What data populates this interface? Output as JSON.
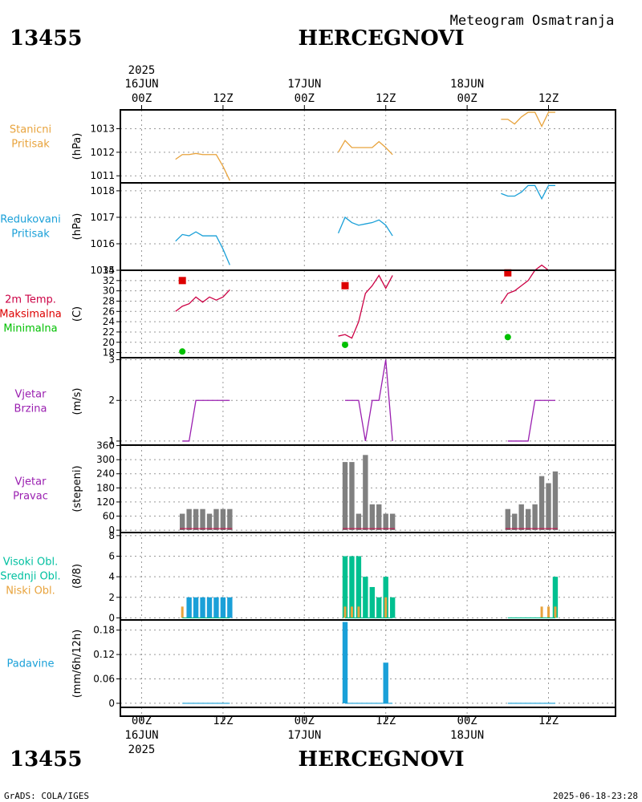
{
  "header": {
    "station_id": "13455",
    "station_name": "HERCEGNOVI",
    "subtitle": "Meteogram Osmatranja"
  },
  "footer": {
    "station_id": "13455",
    "station_name": "HERCEGNOVI",
    "credit": "GrADS: COLA/IGES",
    "timestamp": "2025-06-18-23:28"
  },
  "time_axis": {
    "top": [
      {
        "l1": "2025",
        "l2": "16JUN",
        "l3": "00Z",
        "h": 0
      },
      {
        "l1": "",
        "l2": "",
        "l3": "12Z",
        "h": 12
      },
      {
        "l1": "",
        "l2": "17JUN",
        "l3": "00Z",
        "h": 24
      },
      {
        "l1": "",
        "l2": "",
        "l3": "12Z",
        "h": 36
      },
      {
        "l1": "",
        "l2": "18JUN",
        "l3": "00Z",
        "h": 48
      },
      {
        "l1": "",
        "l2": "",
        "l3": "12Z",
        "h": 60
      }
    ],
    "bottom": [
      {
        "l1": "00Z",
        "l2": "16JUN",
        "l3": "2025",
        "h": 0
      },
      {
        "l1": "12Z",
        "l2": "",
        "l3": "",
        "h": 12
      },
      {
        "l1": "00Z",
        "l2": "17JUN",
        "l3": "",
        "h": 24
      },
      {
        "l1": "12Z",
        "l2": "",
        "l3": "",
        "h": 36
      },
      {
        "l1": "00Z",
        "l2": "18JUN",
        "l3": "",
        "h": 48
      },
      {
        "l1": "12Z",
        "l2": "",
        "l3": "",
        "h": 60
      }
    ]
  },
  "panel_labels": [
    {
      "lines": [
        {
          "text": "Stanicni",
          "color": "#e8a33c"
        },
        {
          "text": "Pritisak",
          "color": "#e8a33c"
        }
      ],
      "unit": "(hPa)"
    },
    {
      "lines": [
        {
          "text": "Redukovani",
          "color": "#1aa0d8"
        },
        {
          "text": "Pritisak",
          "color": "#1aa0d8"
        }
      ],
      "unit": "(hPa)"
    },
    {
      "lines": [
        {
          "text": "2m Temp.",
          "color": "#cc0044"
        },
        {
          "text": "Maksimalna",
          "color": "#dd0000"
        },
        {
          "text": "Minimalna",
          "color": "#00c000"
        }
      ],
      "unit": "(C)"
    },
    {
      "lines": [
        {
          "text": "Vjetar",
          "color": "#9a1fb0"
        },
        {
          "text": "Brzina",
          "color": "#9a1fb0"
        }
      ],
      "unit": "(m/s)"
    },
    {
      "lines": [
        {
          "text": "Vjetar",
          "color": "#9a1fb0"
        },
        {
          "text": "Pravac",
          "color": "#9a1fb0"
        }
      ],
      "unit": "(stepeni)"
    },
    {
      "lines": [
        {
          "text": "Visoki Obl.",
          "color": "#00c0a0"
        },
        {
          "text": "Srednji Obl.",
          "color": "#00c0a0"
        },
        {
          "text": "Niski Obl.",
          "color": "#e8a33c"
        }
      ],
      "unit": "(8/8)"
    },
    {
      "lines": [
        {
          "text": "Padavine",
          "color": "#1aa0d8"
        }
      ],
      "unit": "(mm/6h/12h)"
    }
  ],
  "chart_data": [
    {
      "type": "line",
      "title": "Stanicni Pritisak",
      "ylabel": "(hPa)",
      "ylim": [
        1010.7,
        1013.8
      ],
      "yticks": [
        "1011",
        "1012",
        "1013"
      ],
      "color": "#e8a33c",
      "series": [
        {
          "name": "Stanicni Pritisak",
          "x": [
            5,
            6,
            7,
            8,
            9,
            10,
            11,
            12,
            13
          ],
          "values": [
            1011.7,
            1011.9,
            1011.9,
            1011.95,
            1011.9,
            1011.9,
            1011.9,
            1011.4,
            1010.8
          ]
        },
        {
          "name": "Stanicni Pritisak",
          "x": [
            29,
            30,
            31,
            32,
            33,
            34,
            35,
            36,
            37
          ],
          "values": [
            1012.0,
            1012.5,
            1012.2,
            1012.2,
            1012.2,
            1012.2,
            1012.45,
            1012.2,
            1011.9
          ]
        },
        {
          "name": "Stanicni Pritisak",
          "x": [
            53,
            54,
            55,
            56,
            57,
            58,
            59,
            60,
            61
          ],
          "values": [
            1013.4,
            1013.4,
            1013.2,
            1013.5,
            1013.7,
            1013.7,
            1013.1,
            1013.7,
            1013.7
          ]
        }
      ]
    },
    {
      "type": "line",
      "title": "Redukovani Pritisak",
      "ylabel": "(hPa)",
      "ylim": [
        1015.0,
        1018.3
      ],
      "yticks": [
        "1015",
        "1016",
        "1017",
        "1018"
      ],
      "color": "#1aa0d8",
      "series": [
        {
          "name": "Redukovani Pritisak",
          "x": [
            5,
            6,
            7,
            8,
            9,
            10,
            11,
            12,
            13
          ],
          "values": [
            1016.1,
            1016.35,
            1016.3,
            1016.45,
            1016.3,
            1016.3,
            1016.3,
            1015.8,
            1015.2
          ]
        },
        {
          "name": "Redukovani Pritisak",
          "x": [
            29,
            30,
            31,
            32,
            33,
            34,
            35,
            36,
            37
          ],
          "values": [
            1016.4,
            1017.0,
            1016.8,
            1016.7,
            1016.75,
            1016.8,
            1016.9,
            1016.7,
            1016.3
          ]
        },
        {
          "name": "Redukovani Pritisak",
          "x": [
            53,
            54,
            55,
            56,
            57,
            58,
            59,
            60,
            61
          ],
          "values": [
            1017.9,
            1017.8,
            1017.8,
            1017.95,
            1018.2,
            1018.2,
            1017.7,
            1018.2,
            1018.2
          ]
        }
      ]
    },
    {
      "type": "line",
      "title": "2m Temp. Maksimalna Minimalna",
      "ylabel": "(C)",
      "ylim": [
        17,
        34
      ],
      "yticks": [
        "18",
        "20",
        "22",
        "24",
        "26",
        "28",
        "30",
        "32",
        "34"
      ],
      "series": [
        {
          "name": "2m Temp.",
          "color": "#cc0044",
          "x": [
            5,
            6,
            7,
            8,
            9,
            10,
            11,
            12,
            13
          ],
          "values": [
            26,
            27,
            27.5,
            28.8,
            27.8,
            28.8,
            28.2,
            28.8,
            30.2
          ]
        },
        {
          "name": "2m Temp.",
          "color": "#cc0044",
          "x": [
            29,
            30,
            31,
            32,
            33,
            34,
            35,
            36,
            37
          ],
          "values": [
            21.2,
            21.5,
            20.8,
            24,
            29.5,
            31,
            33,
            30.5,
            33
          ]
        },
        {
          "name": "2m Temp.",
          "color": "#cc0044",
          "x": [
            53,
            54,
            55,
            56,
            57,
            58,
            59,
            60,
            61
          ],
          "values": [
            27.5,
            29.5,
            30,
            31,
            32,
            34,
            35,
            34,
            34
          ]
        }
      ],
      "max_points": {
        "color": "#dd0000",
        "x": [
          6,
          30,
          54
        ],
        "values": [
          32,
          31,
          33.5
        ]
      },
      "min_points": {
        "color": "#00c000",
        "x": [
          6,
          30,
          54
        ],
        "values": [
          18.2,
          19.5,
          21
        ]
      }
    },
    {
      "type": "line",
      "title": "Vjetar Brzina",
      "ylabel": "(m/s)",
      "ylim": [
        0.9,
        3.05
      ],
      "yticks": [
        "1",
        "2",
        "3"
      ],
      "color": "#9a1fb0",
      "series": [
        {
          "name": "Vjetar Brzina",
          "x": [
            6,
            7,
            8,
            9,
            10,
            11,
            12,
            13
          ],
          "values": [
            1,
            1,
            2,
            2,
            2,
            2,
            2,
            2
          ]
        },
        {
          "name": "Vjetar Brzina",
          "x": [
            30,
            31,
            32,
            33,
            34,
            35,
            36,
            37
          ],
          "values": [
            2,
            2,
            2,
            1,
            2,
            2,
            3,
            1
          ]
        },
        {
          "name": "Vjetar Brzina",
          "x": [
            54,
            55,
            56,
            57,
            58,
            59,
            60,
            61
          ],
          "values": [
            1,
            1,
            1,
            1,
            2,
            2,
            2,
            2
          ]
        }
      ]
    },
    {
      "type": "bar",
      "title": "Vjetar Pravac",
      "ylabel": "(stepeni)",
      "ylim": [
        -10,
        362
      ],
      "yticks": [
        "0",
        "60",
        "120",
        "180",
        "240",
        "300",
        "360"
      ],
      "color": "#808080",
      "baseline_color": "#cc0044",
      "x": [
        6,
        7,
        8,
        9,
        10,
        11,
        12,
        13,
        30,
        31,
        32,
        33,
        34,
        35,
        36,
        37,
        54,
        55,
        56,
        57,
        58,
        59,
        60,
        61
      ],
      "values": [
        70,
        90,
        90,
        90,
        70,
        90,
        90,
        90,
        290,
        290,
        70,
        320,
        110,
        110,
        70,
        70,
        90,
        70,
        110,
        90,
        110,
        230,
        200,
        250
      ]
    },
    {
      "type": "bar",
      "title": "Oblacnost",
      "ylabel": "(8/8)",
      "ylim": [
        -0.2,
        8.3
      ],
      "yticks": [
        "0",
        "2",
        "4",
        "6",
        "8"
      ],
      "series": [
        {
          "name": "Visoki Obl.",
          "color": "#00c090",
          "x": [
            30,
            31,
            32,
            33,
            34,
            35,
            36,
            37,
            61
          ],
          "values": [
            6,
            6,
            6,
            4,
            3,
            2,
            4,
            2,
            4
          ]
        },
        {
          "name": "Srednji Obl.",
          "color": "#1aa0d8",
          "x": [
            7,
            8,
            9,
            10,
            11,
            12,
            13
          ],
          "values": [
            2,
            2,
            2,
            2,
            2,
            2,
            2
          ]
        },
        {
          "name": "Niski Obl.",
          "color": "#e8a33c",
          "x": [
            6,
            30,
            31,
            32,
            36,
            59,
            60,
            61
          ],
          "values": [
            1.1,
            1.1,
            1.1,
            1.1,
            2,
            1.1,
            1.1,
            1.1
          ]
        }
      ]
    },
    {
      "type": "bar",
      "title": "Padavine",
      "ylabel": "(mm/6h/12h)",
      "ylim": [
        -0.01,
        0.205
      ],
      "yticks": [
        "0",
        "0.06",
        "0.12",
        "0.18"
      ],
      "color": "#1aa0d8",
      "x": [
        6,
        7,
        8,
        9,
        10,
        11,
        12,
        13,
        30,
        31,
        32,
        33,
        34,
        35,
        36,
        37,
        54,
        55,
        56,
        57,
        58,
        59,
        60,
        61
      ],
      "values": [
        0,
        0,
        0,
        0,
        0,
        0,
        0,
        0,
        0.2,
        0,
        0,
        0,
        0,
        0,
        0.1,
        0,
        0,
        0,
        0,
        0,
        0,
        0,
        0,
        0
      ]
    }
  ]
}
